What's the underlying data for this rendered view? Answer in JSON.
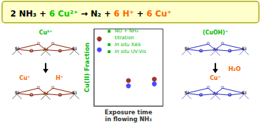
{
  "chart_data": {
    "type": "scatter",
    "x": [
      0.25,
      1.6,
      2.8
    ],
    "series": [
      {
        "color": "#8b0000",
        "values": [
          1.0,
          0.38,
          0.4
        ]
      },
      {
        "color": "#1a1aff",
        "values": [
          0.84,
          0.3,
          0.33
        ]
      }
    ],
    "xlim": [
      0,
      3.2
    ],
    "ylim": [
      0,
      1.15
    ],
    "xticks": [],
    "yticks": [],
    "tick_labels": false,
    "grid": false,
    "x_label": "Exposure time\nin flowing NH₃",
    "y_label": {
      "text": "Cu(II) Fraction",
      "color": "#00bb00"
    },
    "header": {
      "color": "#ffffcc",
      "border_color": "#aaaa00"
    },
    "equation": [
      {
        "text": "2 NH₃",
        "color": "#000000"
      },
      {
        "text": "+",
        "color": "#000000"
      },
      {
        "text": "6 Cu²⁺",
        "color": "#00cc00"
      },
      {
        "text": "→",
        "color": "#000000"
      },
      {
        "text": "N₂",
        "color": "#000000"
      },
      {
        "text": "+",
        "color": "#000000"
      },
      {
        "text": "6 H⁺",
        "color": "#ff6600"
      },
      {
        "text": "+",
        "color": "#000000"
      },
      {
        "text": "6 Cu⁺",
        "color": "#ff6600"
      }
    ],
    "inset_legend": {
      "color": "#00bb00",
      "items": [
        {
          "lines": [
            "NO + NH₃",
            "titration"
          ]
        },
        {
          "italic": "In situ",
          "text": "XAS"
        },
        {
          "italic": "In situ",
          "text": "UV-Vis"
        }
      ]
    },
    "structure_colors": {
      "dark": {
        "bond": "#8b1500",
        "O": "#8b1500",
        "Al": "#8b4500",
        "Si": "#333333",
        "leg": "#555555"
      },
      "blue": {
        "bond": "#2222cc",
        "O": "#2222cc",
        "Al": "#4444aa",
        "Si": "#333333",
        "leg": "#6666cc"
      }
    },
    "structure_atoms": [
      "Si",
      "O",
      "Al",
      "O",
      "Si"
    ],
    "bridge_atom": "O",
    "structures": [
      {
        "colors": "dark",
        "labels": [
          {
            "text": "Cu²⁺",
            "color": "#00bb00"
          }
        ]
      },
      {
        "colors": "dark",
        "labels": [
          {
            "text": "Cu⁺",
            "color": "#ff6600"
          },
          {
            "text": "H⁺",
            "color": "#ff6600"
          }
        ]
      },
      {
        "colors": "blue",
        "labels": [
          {
            "text": "(CuOH)⁺",
            "color": "#00bb00"
          }
        ]
      },
      {
        "colors": "blue",
        "labels": [
          {
            "text": "Cu⁺",
            "color": "#ff6600"
          }
        ]
      }
    ],
    "arrows": [
      {
        "color": "#000000"
      },
      {
        "color": "#000000",
        "label": {
          "text": "H₂O",
          "color": "#ff6600"
        }
      }
    ]
  }
}
